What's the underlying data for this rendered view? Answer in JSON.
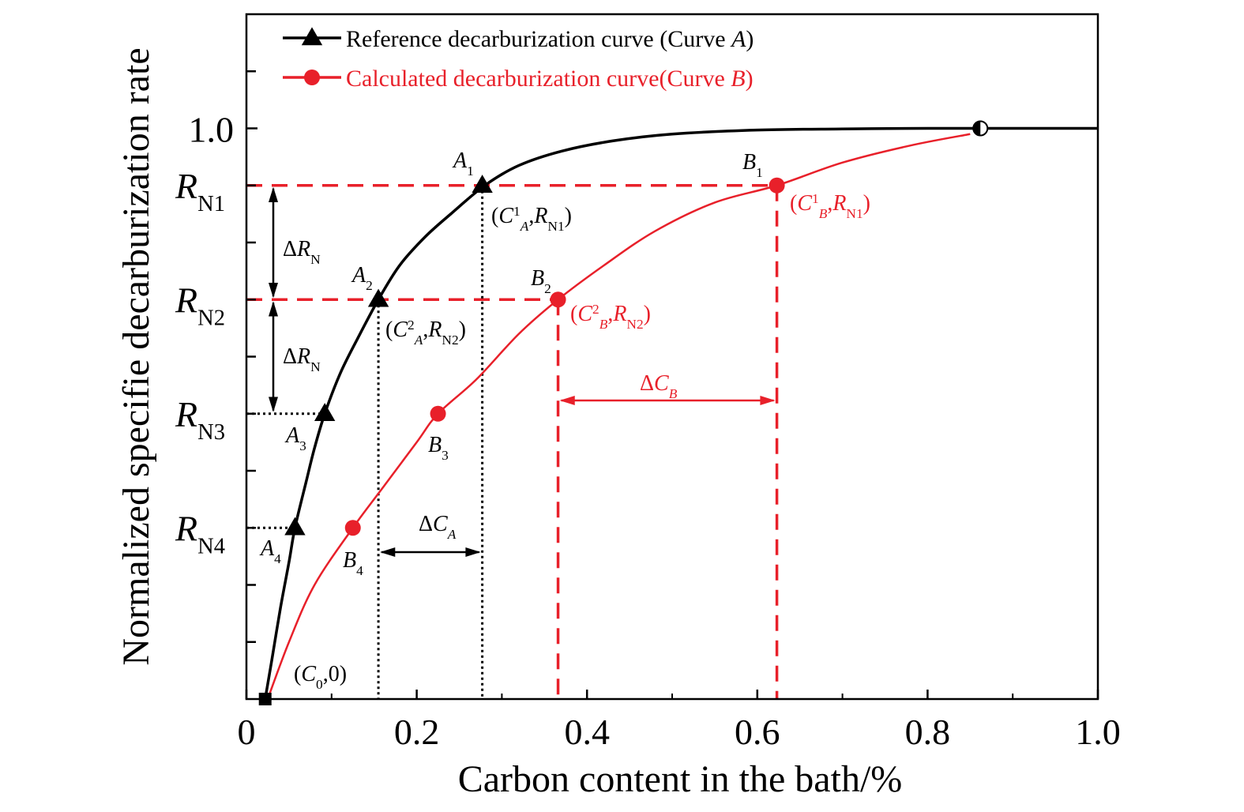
{
  "chart_data": {
    "type": "line",
    "xlabel": "Carbon content in the bath/%",
    "ylabel": "Normalized specifie decarburization rate",
    "xlim": [
      0,
      1.0
    ],
    "ylim": [
      0,
      1.2
    ],
    "x_ticks": [
      "0",
      "0.2",
      "0.4",
      "0.6",
      "0.8",
      "1.0"
    ],
    "x_tick_values": [
      0,
      0.2,
      0.4,
      0.6,
      0.8,
      1.0
    ],
    "y_ticks": [
      {
        "label": "1.0",
        "sub": "",
        "value": 1.0
      },
      {
        "label": "R",
        "sub": "N1",
        "value": 0.9
      },
      {
        "label": "R",
        "sub": "N2",
        "value": 0.7
      },
      {
        "label": "R",
        "sub": "N3",
        "value": 0.5
      },
      {
        "label": "R",
        "sub": "N4",
        "value": 0.3
      }
    ],
    "y_minor_ticks": [
      0.1,
      0.2,
      0.3,
      0.4,
      0.5,
      0.6,
      0.7,
      0.8,
      0.9,
      1.0,
      1.1
    ],
    "legend": {
      "position": "top-left",
      "entries": [
        {
          "text": "Reference decarburization curve (Curve ",
          "italic": "A",
          "close": ")",
          "color": "#000000",
          "marker": "triangle"
        },
        {
          "text": "Calculated decarburization curve(Curve ",
          "italic": "B",
          "close": ")",
          "color": "#e8202a",
          "marker": "circle"
        }
      ]
    },
    "series": [
      {
        "name": "Reference decarburization curve (Curve A)",
        "color": "#000000",
        "marker": "triangle",
        "x": [
          0.022,
          0.03,
          0.04,
          0.05,
          0.057,
          0.07,
          0.08,
          0.092,
          0.11,
          0.13,
          0.155,
          0.18,
          0.21,
          0.24,
          0.28,
          0.32,
          0.37,
          0.43,
          0.5,
          0.6,
          0.7,
          0.8,
          0.862,
          0.9,
          1.0
        ],
        "y": [
          0.0,
          0.07,
          0.16,
          0.24,
          0.3,
          0.38,
          0.44,
          0.5,
          0.57,
          0.63,
          0.7,
          0.76,
          0.81,
          0.85,
          0.9,
          0.935,
          0.96,
          0.978,
          0.99,
          0.997,
          0.999,
          1.0,
          1.0,
          1.0,
          1.0
        ]
      },
      {
        "name": "Calculated decarburization curve(Curve B)",
        "color": "#e8202a",
        "marker": "circle",
        "x": [
          0.025,
          0.05,
          0.08,
          0.125,
          0.16,
          0.2,
          0.225,
          0.27,
          0.32,
          0.366,
          0.42,
          0.48,
          0.55,
          0.623,
          0.7,
          0.78,
          0.85
        ],
        "y": [
          0.0,
          0.1,
          0.2,
          0.3,
          0.37,
          0.45,
          0.5,
          0.56,
          0.64,
          0.7,
          0.76,
          0.82,
          0.87,
          0.9,
          0.94,
          0.97,
          0.99
        ]
      }
    ],
    "points_A": [
      {
        "label": "A",
        "sub": "1",
        "x": 0.277,
        "y": 0.9
      },
      {
        "label": "A",
        "sub": "2",
        "x": 0.155,
        "y": 0.7
      },
      {
        "label": "A",
        "sub": "3",
        "x": 0.092,
        "y": 0.5
      },
      {
        "label": "A",
        "sub": "4",
        "x": 0.057,
        "y": 0.3
      }
    ],
    "points_B": [
      {
        "label": "B",
        "sub": "1",
        "x": 0.623,
        "y": 0.9
      },
      {
        "label": "B",
        "sub": "2",
        "x": 0.366,
        "y": 0.7
      },
      {
        "label": "B",
        "sub": "3",
        "x": 0.225,
        "y": 0.5
      },
      {
        "label": "B",
        "sub": "4",
        "x": 0.125,
        "y": 0.3
      }
    ],
    "start_point": {
      "label": "(C0,0)",
      "x": 0.022,
      "y": 0.0
    },
    "meeting_point": {
      "x": 0.862,
      "y": 1.0
    },
    "annotations": {
      "coord_A1": "(C¹A,RN1)",
      "coord_A2": "(C²A,RN2)",
      "coord_B1": "(C¹B,RN1)",
      "coord_B2": "(C²B,RN2)",
      "delta_RN": "ΔRN",
      "delta_CA": "ΔCA",
      "delta_CB": "ΔCB"
    }
  },
  "colors": {
    "axis": "#000000",
    "curve_a": "#000000",
    "curve_b": "#e8202a"
  }
}
